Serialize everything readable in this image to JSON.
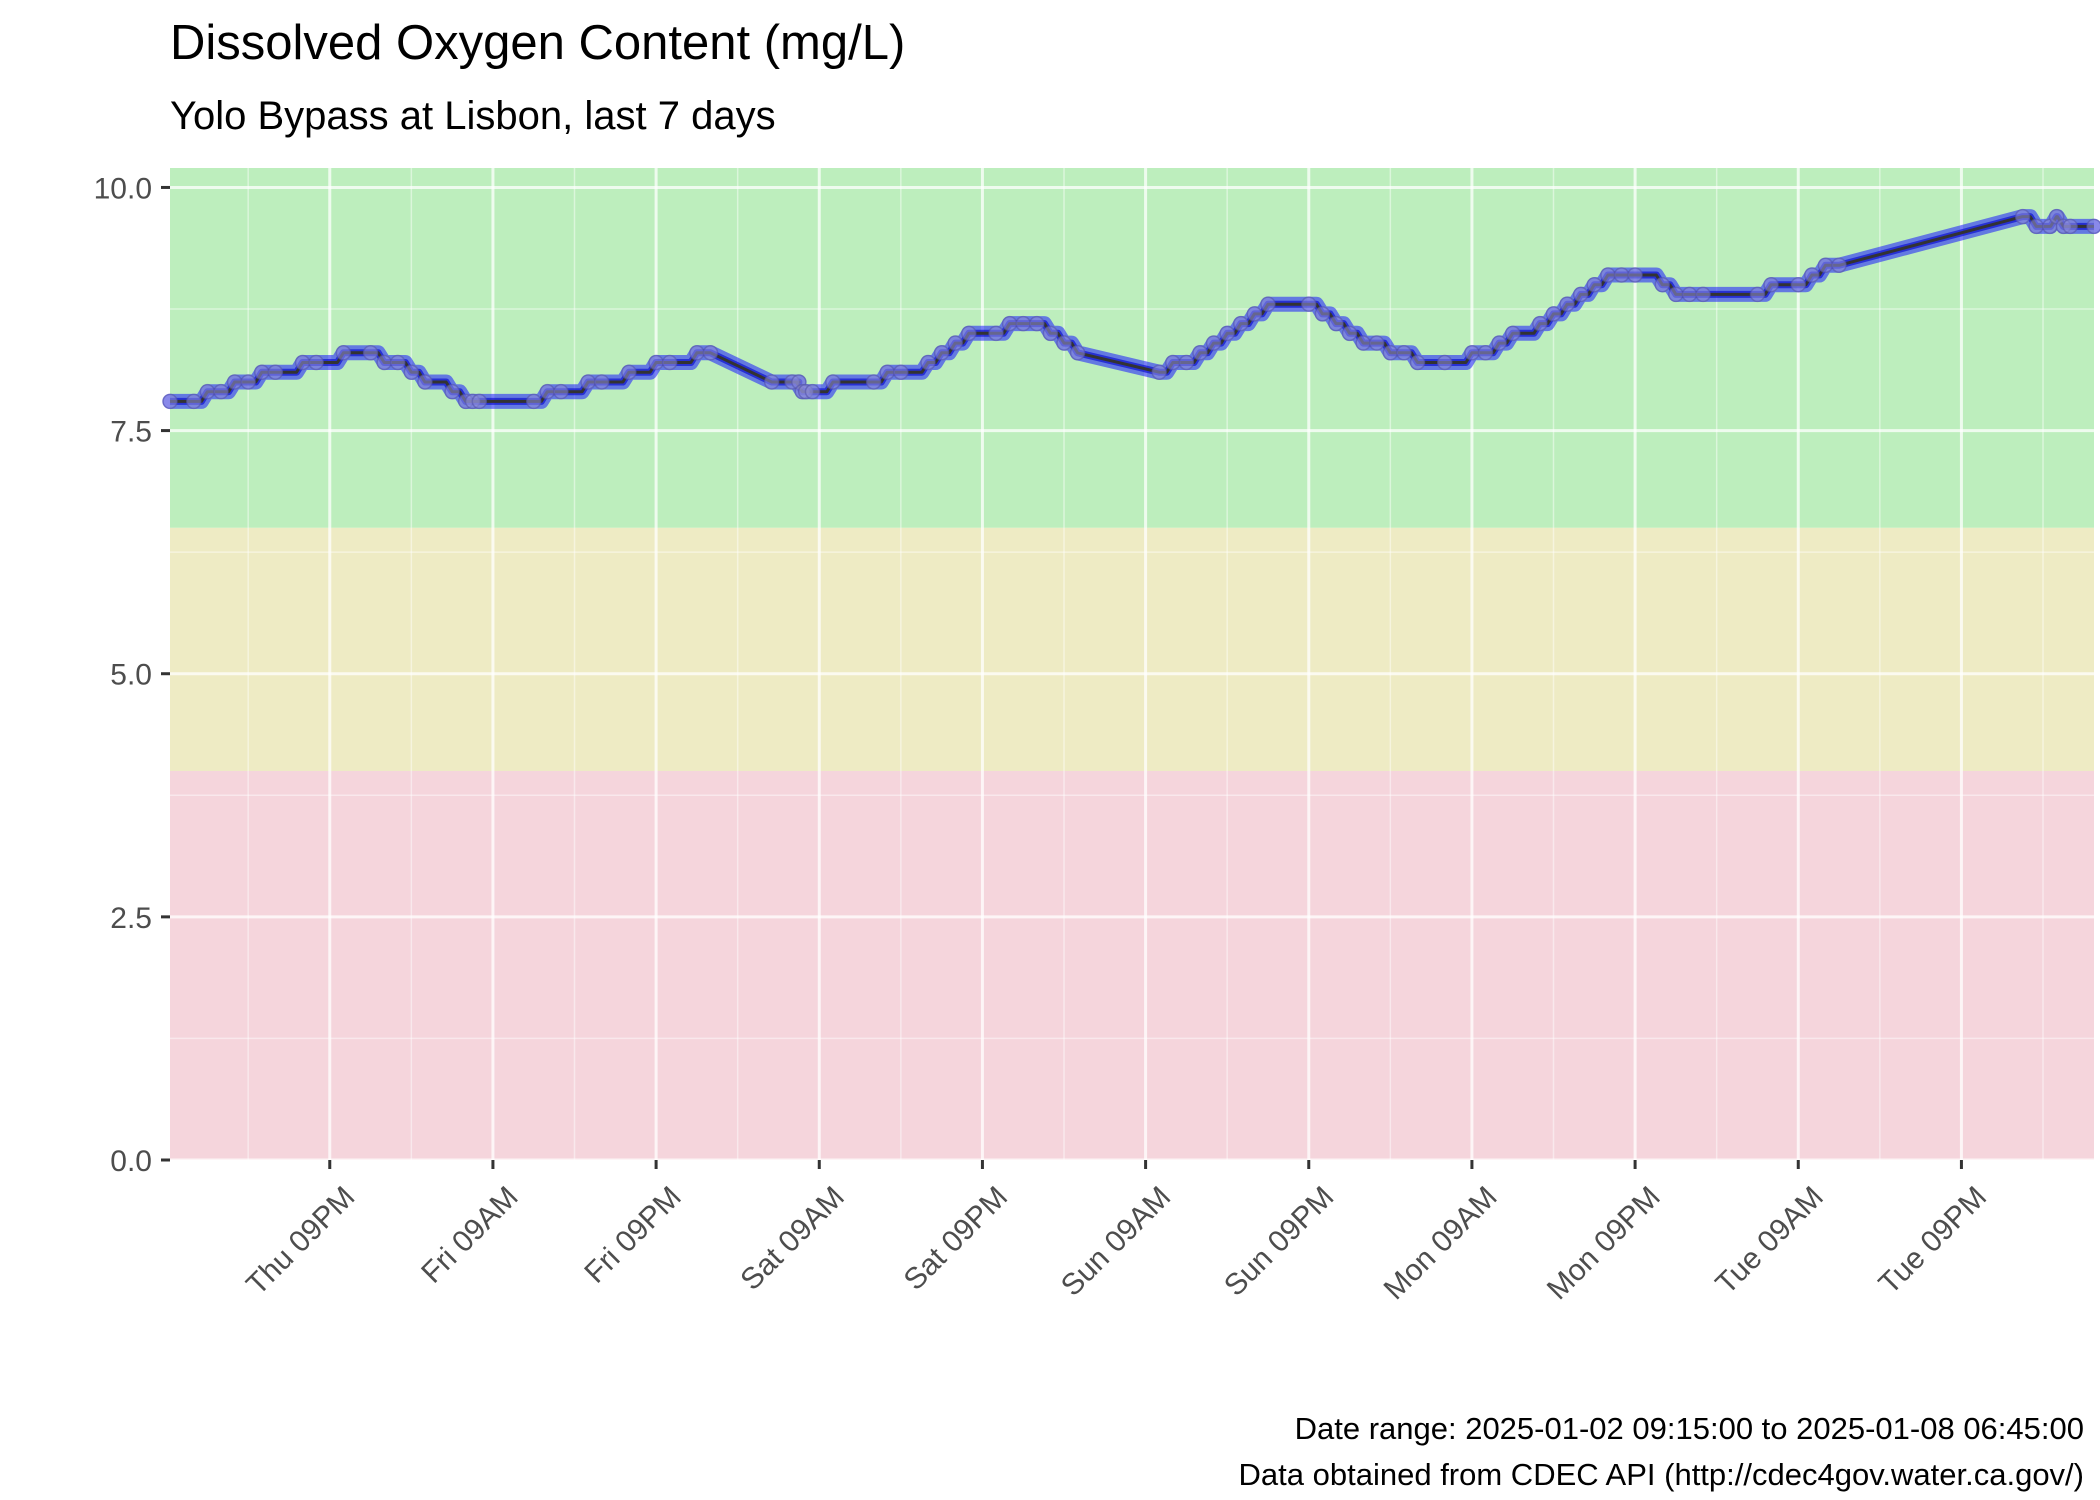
{
  "chart_data": {
    "type": "line",
    "title": "Dissolved Oxygen Content (mg/L)",
    "subtitle": "Yolo Bypass at Lisbon, last 7 days",
    "caption": [
      "Date range: 2025-01-02 09:15:00 to 2025-01-08 06:45:00",
      "Data obtained from CDEC API (http://cdec4gov.water.ca.gov/)"
    ],
    "xlabel": "",
    "ylabel": "",
    "xlim": [
      "2025-01-02 09:15",
      "2025-01-08 06:45"
    ],
    "ylim": [
      0,
      10.2
    ],
    "grid": true,
    "y_ticks": [
      {
        "value": 0,
        "label": "0.0"
      },
      {
        "value": 2.5,
        "label": "2.5"
      },
      {
        "value": 5,
        "label": "5.0"
      },
      {
        "value": 7.5,
        "label": "7.5"
      },
      {
        "value": 10,
        "label": "10.0"
      }
    ],
    "x_ticks": [
      {
        "value": "2025-01-02 21:00",
        "label": "Thu 09PM"
      },
      {
        "value": "2025-01-03 09:00",
        "label": "Fri 09AM"
      },
      {
        "value": "2025-01-03 21:00",
        "label": "Fri 09PM"
      },
      {
        "value": "2025-01-04 09:00",
        "label": "Sat 09AM"
      },
      {
        "value": "2025-01-04 21:00",
        "label": "Sat 09PM"
      },
      {
        "value": "2025-01-05 09:00",
        "label": "Sun 09AM"
      },
      {
        "value": "2025-01-05 21:00",
        "label": "Sun 09PM"
      },
      {
        "value": "2025-01-06 09:00",
        "label": "Mon 09AM"
      },
      {
        "value": "2025-01-06 21:00",
        "label": "Mon 09PM"
      },
      {
        "value": "2025-01-07 09:00",
        "label": "Tue 09AM"
      },
      {
        "value": "2025-01-07 21:00",
        "label": "Tue 09PM"
      }
    ],
    "bands": [
      {
        "from": 6.5,
        "to": 10.2,
        "color": "#bdeebd"
      },
      {
        "from": 4.0,
        "to": 6.5,
        "color": "#eeebc4"
      },
      {
        "from": 0,
        "to": 4.0,
        "color": "#f5d5dc"
      }
    ],
    "line_color": "#333333",
    "point_color": "#1a1aff",
    "series": [
      {
        "x": [
          "2025-01-02 09:15",
          "2025-01-02 11:00",
          "2025-01-02 12:00",
          "2025-01-02 13:00",
          "2025-01-02 14:00",
          "2025-01-02 15:00",
          "2025-01-02 16:00",
          "2025-01-02 17:00",
          "2025-01-02 19:00",
          "2025-01-02 20:00",
          "2025-01-02 22:00",
          "2025-01-03 00:00",
          "2025-01-03 01:00",
          "2025-01-03 02:00",
          "2025-01-03 03:00",
          "2025-01-03 04:00",
          "2025-01-03 06:00",
          "2025-01-03 07:00",
          "2025-01-03 07:30",
          "2025-01-03 08:00",
          "2025-01-03 12:00",
          "2025-01-03 13:00",
          "2025-01-03 14:00",
          "2025-01-03 16:00",
          "2025-01-03 17:00",
          "2025-01-03 19:00",
          "2025-01-03 21:00",
          "2025-01-03 22:00",
          "2025-01-04 00:00",
          "2025-01-04 01:00",
          "2025-01-04 05:30",
          "2025-01-04 07:00",
          "2025-01-04 07:30",
          "2025-01-04 07:45",
          "2025-01-04 08:00",
          "2025-01-04 08:30",
          "2025-01-04 10:00",
          "2025-01-04 13:00",
          "2025-01-04 14:00",
          "2025-01-04 15:00",
          "2025-01-04 17:00",
          "2025-01-04 18:00",
          "2025-01-04 19:00",
          "2025-01-04 20:00",
          "2025-01-04 22:00",
          "2025-01-04 23:00",
          "2025-01-05 00:00",
          "2025-01-05 01:00",
          "2025-01-05 02:00",
          "2025-01-05 03:00",
          "2025-01-05 04:00",
          "2025-01-05 10:00",
          "2025-01-05 11:00",
          "2025-01-05 12:00",
          "2025-01-05 13:00",
          "2025-01-05 14:00",
          "2025-01-05 15:00",
          "2025-01-05 16:00",
          "2025-01-05 17:00",
          "2025-01-05 18:00",
          "2025-01-05 21:00",
          "2025-01-05 22:00",
          "2025-01-05 23:00",
          "2025-01-06 00:00",
          "2025-01-06 01:00",
          "2025-01-06 02:00",
          "2025-01-06 03:00",
          "2025-01-06 04:00",
          "2025-01-06 05:00",
          "2025-01-06 07:00",
          "2025-01-06 09:00",
          "2025-01-06 10:00",
          "2025-01-06 11:00",
          "2025-01-06 12:00",
          "2025-01-06 14:00",
          "2025-01-06 15:00",
          "2025-01-06 16:00",
          "2025-01-06 17:00",
          "2025-01-06 18:00",
          "2025-01-06 19:00",
          "2025-01-06 20:00",
          "2025-01-06 21:00",
          "2025-01-06 23:00",
          "2025-01-07 00:00",
          "2025-01-07 01:00",
          "2025-01-07 02:00",
          "2025-01-07 06:00",
          "2025-01-07 07:00",
          "2025-01-07 09:00",
          "2025-01-07 10:00",
          "2025-01-07 11:00",
          "2025-01-07 12:00",
          "2025-01-08 01:30",
          "2025-01-08 02:30",
          "2025-01-08 03:30",
          "2025-01-08 04:00",
          "2025-01-08 04:30",
          "2025-01-08 05:00",
          "2025-01-08 06:45"
        ],
        "y": [
          7.8,
          7.8,
          7.9,
          7.9,
          8.0,
          8.0,
          8.1,
          8.1,
          8.2,
          8.2,
          8.3,
          8.3,
          8.2,
          8.2,
          8.1,
          8.0,
          7.9,
          7.8,
          7.8,
          7.8,
          7.8,
          7.9,
          7.9,
          8.0,
          8.0,
          8.1,
          8.2,
          8.2,
          8.3,
          8.3,
          8.0,
          8.0,
          8.0,
          7.9,
          7.9,
          7.9,
          8.0,
          8.0,
          8.1,
          8.1,
          8.2,
          8.3,
          8.4,
          8.5,
          8.5,
          8.6,
          8.6,
          8.6,
          8.5,
          8.4,
          8.3,
          8.1,
          8.2,
          8.2,
          8.3,
          8.4,
          8.5,
          8.6,
          8.7,
          8.8,
          8.8,
          8.7,
          8.6,
          8.5,
          8.4,
          8.4,
          8.3,
          8.3,
          8.2,
          8.2,
          8.3,
          8.3,
          8.4,
          8.5,
          8.6,
          8.7,
          8.8,
          8.9,
          9.0,
          9.1,
          9.1,
          9.1,
          9.0,
          8.9,
          8.9,
          8.9,
          8.9,
          9.0,
          9.0,
          9.1,
          9.2,
          9.2,
          9.7,
          9.6,
          9.6,
          9.7,
          9.6,
          9.6,
          9.6
        ]
      }
    ]
  }
}
